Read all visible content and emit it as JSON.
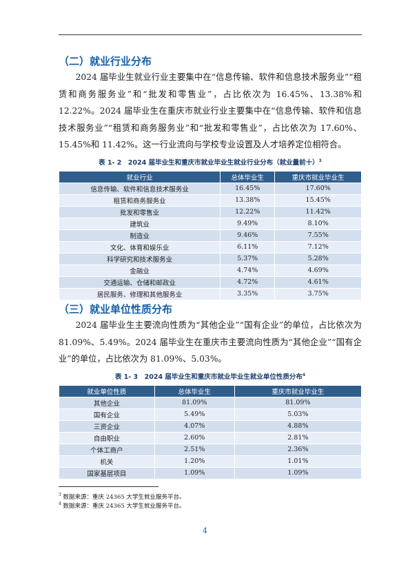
{
  "sections": [
    {
      "heading": "（二）就业行业分布",
      "paragraph": "2024 届毕业生就业行业主要集中在“信息传输、软件和信息技术服务业”“租赁和商务服务业”和“批发和零售业”，占比依次为 16.45%、13.38%和 12.22%。2024 届毕业生在重庆市就业行业主要集中在“信息传输、软件和信息技术服务业”“租赁和商务服务业”和“批发和零售业”，占比依次为 17.60%、15.45%和 11.42%。这一行业流向与学校专业设置及人才培养定位相符合。",
      "table": {
        "caption": "表 1- 2　2024 届毕业生和重庆市就业毕业生就业行业分布（就业量前十）",
        "note_ref": "3",
        "columns": [
          "就业行业",
          "总体毕业生",
          "重庆市就业毕业生"
        ],
        "rows": [
          [
            "信息传输、软件和信息技术服务业",
            "16.45%",
            "17.60%"
          ],
          [
            "租赁和商务服务业",
            "13.38%",
            "15.45%"
          ],
          [
            "批发和零售业",
            "12.22%",
            "11.42%"
          ],
          [
            "建筑业",
            "9.49%",
            "8.10%"
          ],
          [
            "制造业",
            "9.46%",
            "7.55%"
          ],
          [
            "文化、体育和娱乐业",
            "6.11%",
            "7.12%"
          ],
          [
            "科学研究和技术服务业",
            "5.37%",
            "5.28%"
          ],
          [
            "金融业",
            "4.74%",
            "4.69%"
          ],
          [
            "交通运输、仓储和邮政业",
            "4.72%",
            "4.61%"
          ],
          [
            "居民服务、修理和其他服务业",
            "3.35%",
            "3.75%"
          ]
        ]
      }
    },
    {
      "heading": "（三）就业单位性质分布",
      "paragraph": "2024 届毕业生主要流向性质为“其他企业”“国有企业”的单位，占比依次为 81.09%、5.49%。2024 届毕业生在重庆市主要流向性质为“其他企业”“国有企业”的单位，占比依次为 81.09%、5.03%。",
      "table": {
        "caption": "表 1- 3　2024 届毕业生和重庆市就业毕业生就业单位性质分布",
        "note_ref": "4",
        "columns": [
          "就业单位性质",
          "总体毕业生",
          "重庆市就业毕业生"
        ],
        "rows": [
          [
            "其他企业",
            "81.09%",
            "81.09%"
          ],
          [
            "国有企业",
            "5.49%",
            "5.03%"
          ],
          [
            "三资企业",
            "4.07%",
            "4.88%"
          ],
          [
            "自由职业",
            "2.60%",
            "2.81%"
          ],
          [
            "个体工商户",
            "2.51%",
            "2.36%"
          ],
          [
            "机关",
            "1.20%",
            "1.01%"
          ],
          [
            "国家基层项目",
            "1.09%",
            "1.09%"
          ]
        ]
      }
    }
  ],
  "footnotes": [
    {
      "ref": "3",
      "text": "数据来源：重庆 24365 大学生就业服务平台。"
    },
    {
      "ref": "4",
      "text": "数据来源：重庆 24365 大学生就业服务平台。"
    }
  ],
  "page_number": "4"
}
